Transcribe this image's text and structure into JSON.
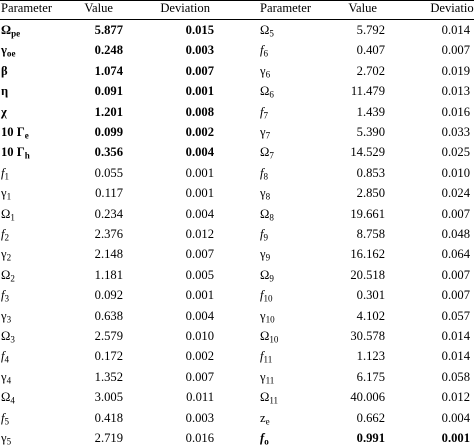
{
  "table": {
    "headers": [
      "Parameter",
      "Value",
      "Deviation",
      "Parameter",
      "Value",
      "Deviation"
    ],
    "rows": [
      {
        "p1": {
          "sym": "Ω",
          "sub": "pe"
        },
        "v1": "5.877",
        "d1": "0.015",
        "b1": true,
        "p2": {
          "sym": "Ω",
          "sub": "5"
        },
        "v2": "5.792",
        "d2": "0.014"
      },
      {
        "p1": {
          "sym": "γ",
          "sub": "oe"
        },
        "v1": "0.248",
        "d1": "0.003",
        "b1": true,
        "p2": {
          "sym": "f",
          "sub": "6",
          "it": true
        },
        "v2": "0.407",
        "d2": "0.007"
      },
      {
        "p1": {
          "sym": "β",
          "sub": ""
        },
        "v1": "1.074",
        "d1": "0.007",
        "b1": true,
        "p2": {
          "sym": "γ",
          "sub": "6"
        },
        "v2": "2.702",
        "d2": "0.019"
      },
      {
        "p1": {
          "sym": "η",
          "sub": ""
        },
        "v1": "0.091",
        "d1": "0.001",
        "b1": true,
        "p2": {
          "sym": "Ω",
          "sub": "6"
        },
        "v2": "11.479",
        "d2": "0.013"
      },
      {
        "p1": {
          "sym": "χ",
          "sub": ""
        },
        "v1": "1.201",
        "d1": "0.008",
        "b1": true,
        "p2": {
          "sym": "f",
          "sub": "7",
          "it": true
        },
        "v2": "1.439",
        "d2": "0.016"
      },
      {
        "p1": {
          "sym": "10 Γ",
          "sub": "e"
        },
        "v1": "0.099",
        "d1": "0.002",
        "b1": true,
        "p2": {
          "sym": "γ",
          "sub": "7"
        },
        "v2": "5.390",
        "d2": "0.033"
      },
      {
        "p1": {
          "sym": "10 Γ",
          "sub": "h"
        },
        "v1": "0.356",
        "d1": "0.004",
        "b1": true,
        "p2": {
          "sym": "Ω",
          "sub": "7"
        },
        "v2": "14.529",
        "d2": "0.025"
      },
      {
        "p1": {
          "sym": "f",
          "sub": "1",
          "it": true
        },
        "v1": "0.055",
        "d1": "0.001",
        "p2": {
          "sym": "f",
          "sub": "8",
          "it": true
        },
        "v2": "0.853",
        "d2": "0.010"
      },
      {
        "p1": {
          "sym": "γ",
          "sub": "1"
        },
        "v1": "0.117",
        "d1": "0.001",
        "p2": {
          "sym": "γ",
          "sub": "8"
        },
        "v2": "2.850",
        "d2": "0.024"
      },
      {
        "p1": {
          "sym": "Ω",
          "sub": "1"
        },
        "v1": "0.234",
        "d1": "0.004",
        "p2": {
          "sym": "Ω",
          "sub": "8"
        },
        "v2": "19.661",
        "d2": "0.007"
      },
      {
        "p1": {
          "sym": "f",
          "sub": "2",
          "it": true
        },
        "v1": "2.376",
        "d1": "0.012",
        "p2": {
          "sym": "f",
          "sub": "9",
          "it": true
        },
        "v2": "8.758",
        "d2": "0.048"
      },
      {
        "p1": {
          "sym": "γ",
          "sub": "2"
        },
        "v1": "2.148",
        "d1": "0.007",
        "p2": {
          "sym": "γ",
          "sub": "9"
        },
        "v2": "16.162",
        "d2": "0.064"
      },
      {
        "p1": {
          "sym": "Ω",
          "sub": "2"
        },
        "v1": "1.181",
        "d1": "0.005",
        "p2": {
          "sym": "Ω",
          "sub": "9"
        },
        "v2": "20.518",
        "d2": "0.007"
      },
      {
        "p1": {
          "sym": "f",
          "sub": "3",
          "it": true
        },
        "v1": "0.092",
        "d1": "0.001",
        "p2": {
          "sym": "f",
          "sub": "10",
          "it": true
        },
        "v2": "0.301",
        "d2": "0.007"
      },
      {
        "p1": {
          "sym": "γ",
          "sub": "3"
        },
        "v1": "0.638",
        "d1": "0.004",
        "p2": {
          "sym": "γ",
          "sub": "10"
        },
        "v2": "4.102",
        "d2": "0.057"
      },
      {
        "p1": {
          "sym": "Ω",
          "sub": "3"
        },
        "v1": "2.579",
        "d1": "0.010",
        "p2": {
          "sym": "Ω",
          "sub": "10"
        },
        "v2": "30.578",
        "d2": "0.014"
      },
      {
        "p1": {
          "sym": "f",
          "sub": "4",
          "it": true
        },
        "v1": "0.172",
        "d1": "0.002",
        "p2": {
          "sym": "f",
          "sub": "11",
          "it": true
        },
        "v2": "1.123",
        "d2": "0.014"
      },
      {
        "p1": {
          "sym": "γ",
          "sub": "4"
        },
        "v1": "1.352",
        "d1": "0.007",
        "p2": {
          "sym": "γ",
          "sub": "11"
        },
        "v2": "6.175",
        "d2": "0.058"
      },
      {
        "p1": {
          "sym": "Ω",
          "sub": "4"
        },
        "v1": "3.005",
        "d1": "0.011",
        "p2": {
          "sym": "Ω",
          "sub": "11"
        },
        "v2": "40.006",
        "d2": "0.012"
      },
      {
        "p1": {
          "sym": "f",
          "sub": "5",
          "it": true
        },
        "v1": "0.418",
        "d1": "0.003",
        "p2": {
          "sym": "z",
          "sub": "e"
        },
        "v2": "0.662",
        "d2": "0.004"
      },
      {
        "p1": {
          "sym": "γ",
          "sub": "5"
        },
        "v1": "2.719",
        "d1": "0.016",
        "p2": {
          "sym": "f",
          "sub": "o",
          "it": true
        },
        "v2": "0.991",
        "d2": "0.001",
        "b2": true
      }
    ]
  }
}
